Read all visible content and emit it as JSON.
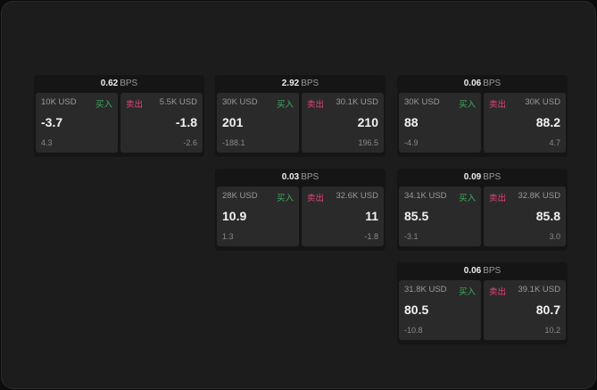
{
  "labels": {
    "buy": "买入",
    "sell": "卖出",
    "unit": "BPS"
  },
  "colors": {
    "buy": "#3fae5c",
    "sell": "#e0457c"
  },
  "widgets": [
    {
      "spread": "0.62",
      "bid": {
        "size": "10K USD",
        "price": "-3.7",
        "change": "4.3"
      },
      "ask": {
        "size": "5.5K USD",
        "price": "-1.8",
        "change": "-2.6"
      }
    },
    {
      "spread": "2.92",
      "bid": {
        "size": "30K USD",
        "price": "201",
        "change": "-188.1"
      },
      "ask": {
        "size": "30.1K USD",
        "price": "210",
        "change": "196.5"
      }
    },
    {
      "spread": "0.06",
      "bid": {
        "size": "30K USD",
        "price": "88",
        "change": "-4.9"
      },
      "ask": {
        "size": "30K USD",
        "price": "88.2",
        "change": "4.7"
      }
    },
    {
      "spread": "0.03",
      "bid": {
        "size": "28K USD",
        "price": "10.9",
        "change": "1.3"
      },
      "ask": {
        "size": "32.6K USD",
        "price": "11",
        "change": "-1.8"
      }
    },
    {
      "spread": "0.09",
      "bid": {
        "size": "34.1K USD",
        "price": "85.5",
        "change": "-3.1"
      },
      "ask": {
        "size": "32.8K USD",
        "price": "85.8",
        "change": "3.0"
      }
    },
    {
      "spread": "0.06",
      "bid": {
        "size": "31.8K USD",
        "price": "80.5",
        "change": "-10.8"
      },
      "ask": {
        "size": "39.1K USD",
        "price": "80.7",
        "change": "10.2"
      }
    }
  ]
}
